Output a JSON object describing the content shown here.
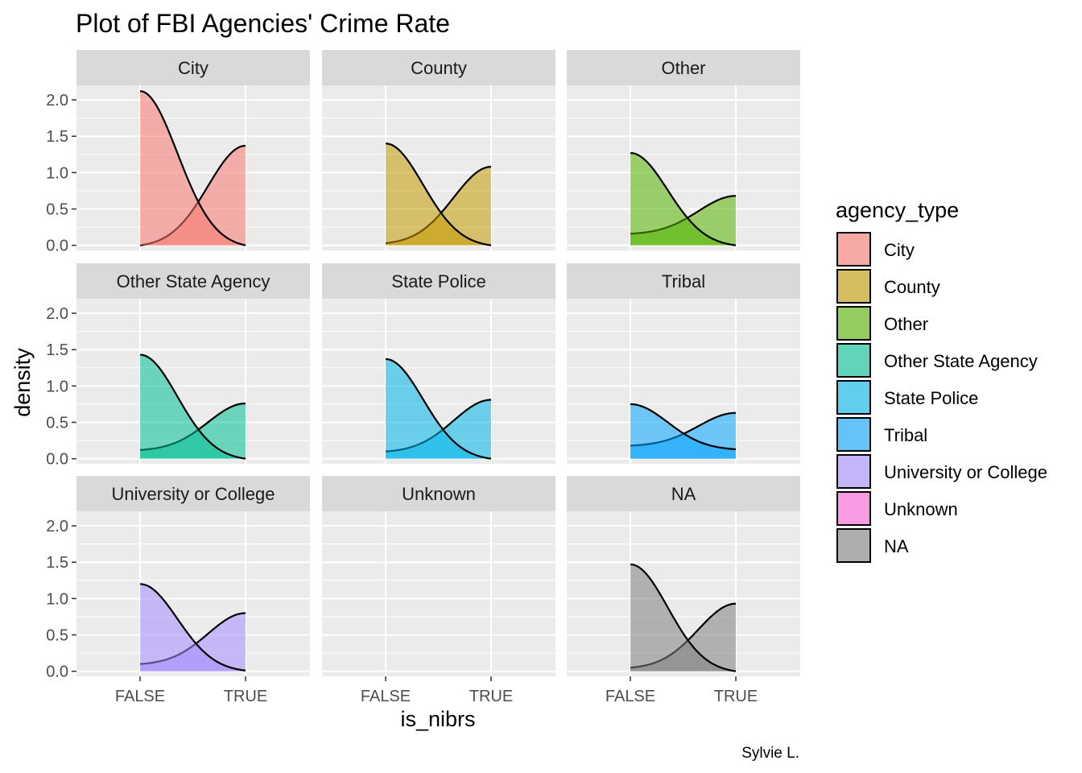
{
  "chart_data": {
    "type": "area",
    "subtype": "faceted-density",
    "title": "Plot of FBI Agencies' Crime Rate",
    "xlabel": "is_nibrs",
    "ylabel": "density",
    "caption": "Sylvie L.",
    "x_categories": [
      "FALSE",
      "TRUE"
    ],
    "ylim": [
      -0.07,
      2.2
    ],
    "y_ticks": [
      0.0,
      0.5,
      1.0,
      1.5,
      2.0
    ],
    "y_tick_labels": [
      "0.0",
      "0.5",
      "1.0",
      "1.5",
      "2.0"
    ],
    "grid": true,
    "facet_layout": {
      "ncol": 3,
      "nrow": 3
    },
    "legend": {
      "title": "agency_type",
      "position": "right",
      "entries": [
        {
          "label": "City",
          "color": "#F8766D"
        },
        {
          "label": "County",
          "color": "#C49A00"
        },
        {
          "label": "Other",
          "color": "#53B400"
        },
        {
          "label": "Other State Agency",
          "color": "#00C094"
        },
        {
          "label": "State Police",
          "color": "#00B6EB"
        },
        {
          "label": "Tribal",
          "color": "#06A4FF"
        },
        {
          "label": "University or College",
          "color": "#A58AFF"
        },
        {
          "label": "Unknown",
          "color": "#FB61D7"
        },
        {
          "label": "NA",
          "color": "#808080"
        }
      ]
    },
    "facets": [
      {
        "label": "City",
        "color": "#F8766D",
        "false_group": {
          "at_false": 2.12,
          "at_true": 0.0
        },
        "true_group": {
          "at_false": 0.0,
          "at_true": 1.37
        }
      },
      {
        "label": "County",
        "color": "#C49A00",
        "false_group": {
          "at_false": 1.4,
          "at_true": 0.0
        },
        "true_group": {
          "at_false": 0.03,
          "at_true": 1.08
        }
      },
      {
        "label": "Other",
        "color": "#53B400",
        "false_group": {
          "at_false": 1.27,
          "at_true": 0.0
        },
        "true_group": {
          "at_false": 0.16,
          "at_true": 0.68
        }
      },
      {
        "label": "Other State Agency",
        "color": "#00C094",
        "false_group": {
          "at_false": 1.43,
          "at_true": 0.0
        },
        "true_group": {
          "at_false": 0.12,
          "at_true": 0.76
        }
      },
      {
        "label": "State Police",
        "color": "#00B6EB",
        "false_group": {
          "at_false": 1.37,
          "at_true": 0.0
        },
        "true_group": {
          "at_false": 0.1,
          "at_true": 0.81
        }
      },
      {
        "label": "Tribal",
        "color": "#06A4FF",
        "false_group": {
          "at_false": 0.75,
          "at_true": 0.13
        },
        "true_group": {
          "at_false": 0.18,
          "at_true": 0.63
        }
      },
      {
        "label": "University or College",
        "color": "#A58AFF",
        "false_group": {
          "at_false": 1.2,
          "at_true": 0.01
        },
        "true_group": {
          "at_false": 0.1,
          "at_true": 0.8
        }
      },
      {
        "label": "Unknown",
        "color": "#FB61D7",
        "false_group": null,
        "true_group": null
      },
      {
        "label": "NA",
        "color": "#808080",
        "false_group": {
          "at_false": 1.47,
          "at_true": 0.0
        },
        "true_group": {
          "at_false": 0.05,
          "at_true": 0.93
        }
      }
    ]
  }
}
